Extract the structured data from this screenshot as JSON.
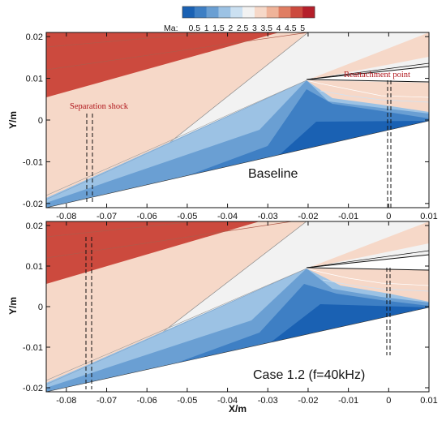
{
  "colorbar": {
    "label": "Ma:",
    "ticks": [
      "0.5",
      "1",
      "1.5",
      "2",
      "2.5",
      "3",
      "3.5",
      "4",
      "4.5",
      "5"
    ],
    "colors": [
      "#1a61b3",
      "#3e7fc4",
      "#6a9fd3",
      "#9cc2e4",
      "#cbe0f1",
      "#f2f2f2",
      "#f6d8c8",
      "#efb399",
      "#e07d62",
      "#cc4a3e",
      "#b51f2a"
    ]
  },
  "chart_data": [
    {
      "type": "heatmap",
      "title": "Baseline",
      "variable": "Ma",
      "xlabel": "",
      "ylabel": "Y/m",
      "xlim": [
        -0.085,
        0.01
      ],
      "ylim": [
        -0.021,
        0.021
      ],
      "xticks": [
        "-0.08",
        "-0.07",
        "-0.06",
        "-0.05",
        "-0.04",
        "-0.03",
        "-0.02",
        "-0.01",
        "0",
        "0.01"
      ],
      "yticks": [
        "0.02",
        "0.01",
        "0",
        "-0.01",
        "-0.02"
      ],
      "annotations": [
        {
          "text": "Separation shock",
          "x": -0.0735
        },
        {
          "text": "Reattachment point",
          "x": -0.0005
        }
      ]
    },
    {
      "type": "heatmap",
      "title": "Case 1.2 (f=40kHz)",
      "variable": "Ma",
      "xlabel": "X/m",
      "ylabel": "Y/m",
      "xlim": [
        -0.085,
        0.01
      ],
      "ylim": [
        -0.021,
        0.021
      ],
      "xticks": [
        "-0.08",
        "-0.07",
        "-0.06",
        "-0.05",
        "-0.04",
        "-0.03",
        "-0.02",
        "-0.01",
        "0",
        "0.01"
      ],
      "yticks": [
        "0.02",
        "0.01",
        "0",
        "-0.01",
        "-0.02"
      ],
      "annotations": []
    }
  ]
}
